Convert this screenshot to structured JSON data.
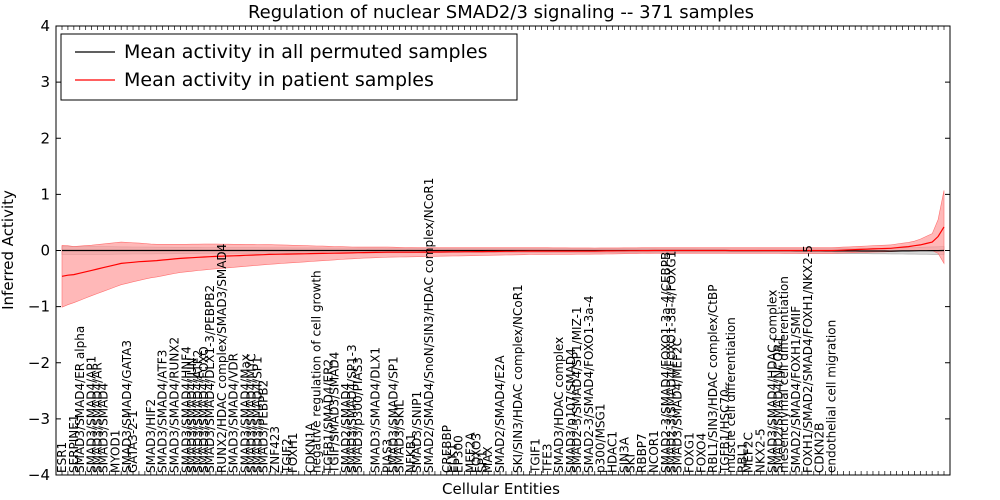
{
  "chart_data": {
    "type": "line",
    "title": "Regulation of nuclear SMAD2/3 signaling -- 371 samples",
    "xlabel": "Cellular Entities",
    "ylabel": "Inferred Activity",
    "ylim": [
      -4,
      4
    ],
    "yticks": [
      -4,
      -3,
      -2,
      -1,
      0,
      1,
      2,
      3,
      4
    ],
    "n_entities": 150,
    "legend": {
      "placement": "top-left",
      "entries": [
        "Mean activity in all permuted samples",
        "Mean activity in patient samples"
      ]
    },
    "colors": {
      "permuted": "#000000",
      "patient": "#ff0000",
      "permuted_band": "#bfbfbf",
      "patient_band": "#ff9a9a"
    },
    "series": [
      {
        "name": "Mean activity in all permuted samples",
        "anchors_x": [
          0,
          10,
          40,
          80,
          110,
          140,
          149
        ],
        "anchors_y": [
          0.0,
          0.0,
          0.0,
          0.0,
          0.0,
          -0.01,
          0.0
        ],
        "band_x": [
          0,
          5,
          15,
          30,
          60,
          100,
          140,
          149
        ],
        "band_y": [
          0.07,
          0.07,
          0.06,
          0.05,
          0.04,
          0.04,
          0.05,
          0.07
        ]
      },
      {
        "name": "Mean activity in patient samples",
        "anchors_x": [
          0,
          1,
          2,
          4,
          6,
          8,
          10,
          13,
          16,
          20,
          25,
          30,
          35,
          40,
          45,
          50,
          55,
          60,
          70,
          80,
          90,
          100,
          110,
          120,
          130,
          135,
          140,
          143,
          145,
          147,
          148,
          149
        ],
        "anchors_y": [
          -0.46,
          -0.44,
          -0.43,
          -0.38,
          -0.33,
          -0.28,
          -0.23,
          -0.2,
          -0.18,
          -0.14,
          -0.11,
          -0.09,
          -0.07,
          -0.06,
          -0.05,
          -0.04,
          -0.03,
          -0.03,
          -0.02,
          -0.01,
          -0.01,
          0.0,
          0.0,
          0.0,
          0.0,
          0.02,
          0.04,
          0.07,
          0.1,
          0.15,
          0.25,
          0.42
        ],
        "band_x": [
          0,
          2,
          5,
          10,
          15,
          20,
          30,
          40,
          50,
          60,
          80,
          100,
          120,
          130,
          140,
          144,
          147,
          148,
          149
        ],
        "band_y": [
          0.55,
          0.5,
          0.45,
          0.38,
          0.3,
          0.25,
          0.2,
          0.15,
          0.1,
          0.08,
          0.06,
          0.05,
          0.05,
          0.05,
          0.06,
          0.08,
          0.15,
          0.3,
          0.65
        ]
      }
    ],
    "entity_labels": [
      {
        "i": 0,
        "text": "ESR1"
      },
      {
        "i": 2,
        "text": "SERPINE1"
      },
      {
        "i": 3,
        "text": "SMAD3/SMAD4/ER alpha"
      },
      {
        "i": 5,
        "text": "SMAD3/SMAD4/AP1"
      },
      {
        "i": 6,
        "text": "SMAD3/SMAD4/AR"
      },
      {
        "i": 7,
        "text": "SMAD3/SMAD4"
      },
      {
        "i": 9,
        "text": "MYOD1"
      },
      {
        "i": 11,
        "text": "SMAD3/SMAD4/GATA3"
      },
      {
        "i": 12,
        "text": "GATA3-2-1"
      },
      {
        "i": 15,
        "text": "SMAD3/HIF2"
      },
      {
        "i": 17,
        "text": "SMAD3/SMAD4/ATF3"
      },
      {
        "i": 19,
        "text": "SMAD3/SMAD4/RUNX2"
      },
      {
        "i": 21,
        "text": "SMAD3/SMAD4/HNF4"
      },
      {
        "i": 22,
        "text": "SMAD3/SMAD4/JUN"
      },
      {
        "i": 23,
        "text": "SMAD3/SMAD4/ATF2"
      },
      {
        "i": 24,
        "text": "SMAD3/SMAD4/FOXO"
      },
      {
        "i": 25,
        "text": "SMAD3/SMAD4/DLX1-3/PEBPB2"
      },
      {
        "i": 27,
        "text": "RUNX2/HDAC complex/SMAD3/SMAD4"
      },
      {
        "i": 29,
        "text": "SMAD3/SMAD4/VDR"
      },
      {
        "i": 31,
        "text": "SMAD3/SMAD4/Max"
      },
      {
        "i": 32,
        "text": "SMAD3/SMAD4/MYC"
      },
      {
        "i": 33,
        "text": "SMAD3/SMAD4/SP1"
      },
      {
        "i": 34,
        "text": "SMAD3/PEBPB2"
      },
      {
        "i": 36,
        "text": "ZNF423"
      },
      {
        "i": 38,
        "text": "TGIF2"
      },
      {
        "i": 39,
        "text": "FOXH1"
      },
      {
        "i": 42,
        "text": "CDKN1A"
      },
      {
        "i": 43,
        "text": "negative regulation of cell growth"
      },
      {
        "i": 45,
        "text": "TGFB1/SMAD4/ER2"
      },
      {
        "i": 46,
        "text": "TGIF/SMAD3/SMAD4"
      },
      {
        "i": 48,
        "text": "SMAD2/SMAD4"
      },
      {
        "i": 49,
        "text": "SMAD3/SMAD4/SP1-3"
      },
      {
        "i": 50,
        "text": "SMAD3/p300/PIAS3"
      },
      {
        "i": 53,
        "text": "SMAD3/SMAD4/DLX1"
      },
      {
        "i": 55,
        "text": "PIAS3"
      },
      {
        "i": 56,
        "text": "SMAD3/SMAD4/SP1"
      },
      {
        "i": 57,
        "text": "SMAD3/SKIL"
      },
      {
        "i": 59,
        "text": "NFKB1"
      },
      {
        "i": 60,
        "text": "SMAD3/SNIP1"
      },
      {
        "i": 62,
        "text": "SMAD2/SMAD4/SnoN/SIN3/HDAC complex/NCoR1"
      },
      {
        "i": 65,
        "text": "CREBBP"
      },
      {
        "i": 66,
        "text": "ELK1"
      },
      {
        "i": 67,
        "text": "EP300"
      },
      {
        "i": 69,
        "text": "MEF2A"
      },
      {
        "i": 70,
        "text": "FOXO3"
      },
      {
        "i": 71,
        "text": "SP1"
      },
      {
        "i": 72,
        "text": "MAX"
      },
      {
        "i": 74,
        "text": "SMAD2/SMAD4/E2A"
      },
      {
        "i": 77,
        "text": "SKI/SIN3/HDAC complex/NCoR1"
      },
      {
        "i": 80,
        "text": "TGIF1"
      },
      {
        "i": 82,
        "text": "TFE3"
      },
      {
        "i": 84,
        "text": "SMAD3/HDAC complex"
      },
      {
        "i": 86,
        "text": "SMAD3/p107/SMAD4"
      },
      {
        "i": 87,
        "text": "SMAD2-3/SMAD4/SP1/MIZ-1"
      },
      {
        "i": 89,
        "text": "SMAD2-3/SMAD4/FOXO1-3a-4"
      },
      {
        "i": 91,
        "text": "p300/MSG1"
      },
      {
        "i": 93,
        "text": "HDAC1"
      },
      {
        "i": 95,
        "text": "SIN3A"
      },
      {
        "i": 96,
        "text": "SKI"
      },
      {
        "i": 98,
        "text": "RBBP7"
      },
      {
        "i": 100,
        "text": "NCOR1"
      },
      {
        "i": 102,
        "text": "SMAD2-3/SMAD4/FOXO1-3a-4/CEBPB"
      },
      {
        "i": 103,
        "text": "SMAD2-3/SMAD4/FOXO1-3a-4/FOXG1"
      },
      {
        "i": 104,
        "text": "SMAD3/SMAD4/MEF2C"
      },
      {
        "i": 106,
        "text": "FOXG1"
      },
      {
        "i": 108,
        "text": "FOXO4"
      },
      {
        "i": 110,
        "text": "RBL1/SIN3/HDAC complex/CtBP"
      },
      {
        "i": 112,
        "text": "TGFB1/HSC70"
      },
      {
        "i": 113,
        "text": "muscle cell differentiation"
      },
      {
        "i": 115,
        "text": "RBL1"
      },
      {
        "i": 116,
        "text": "MEF2C"
      },
      {
        "i": 118,
        "text": "NKX2-5"
      },
      {
        "i": 120,
        "text": "SMAD3/SMAD4/HDAC complex"
      },
      {
        "i": 121,
        "text": "SMAD2/SMAD4/NCOR1"
      },
      {
        "i": 122,
        "text": "mesenchymal cell differentiation"
      },
      {
        "i": 124,
        "text": "SMAD2/SMAD4/FOXH1/SMIF"
      },
      {
        "i": 126,
        "text": "FOXH1/SMAD2/SMAD4/FOXH1/NKX2-5"
      },
      {
        "i": 128,
        "text": "CDKN2B"
      },
      {
        "i": 130,
        "text": "endothelial cell migration"
      }
    ]
  }
}
